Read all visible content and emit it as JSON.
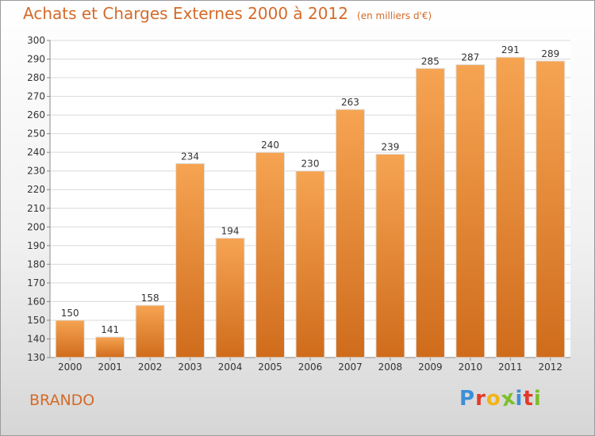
{
  "chart_data": {
    "type": "bar",
    "title": "Achats et Charges Externes 2000 à 2012",
    "unit_note": "(en milliers d'€)",
    "categories": [
      "2000",
      "2001",
      "2002",
      "2003",
      "2004",
      "2005",
      "2006",
      "2007",
      "2008",
      "2009",
      "2010",
      "2011",
      "2012"
    ],
    "values": [
      150,
      141,
      158,
      234,
      194,
      240,
      230,
      263,
      239,
      285,
      287,
      291,
      289
    ],
    "ylim": [
      130,
      300
    ],
    "yticks": [
      130,
      140,
      150,
      160,
      170,
      180,
      190,
      200,
      210,
      220,
      230,
      240,
      250,
      260,
      270,
      280,
      290,
      300
    ],
    "grid": true,
    "bar_color": "#f0913a",
    "text_color": "#d46a28"
  },
  "footer": {
    "place": "BRANDO",
    "logo": [
      "P",
      "r",
      "o",
      "x",
      "i",
      "t",
      "i"
    ],
    "logo_colors": [
      "#3c8fd6",
      "#e23a2a",
      "#f2b417",
      "#7cbf2a",
      "#3c8fd6",
      "#e23a2a",
      "#7cbf2a"
    ]
  }
}
